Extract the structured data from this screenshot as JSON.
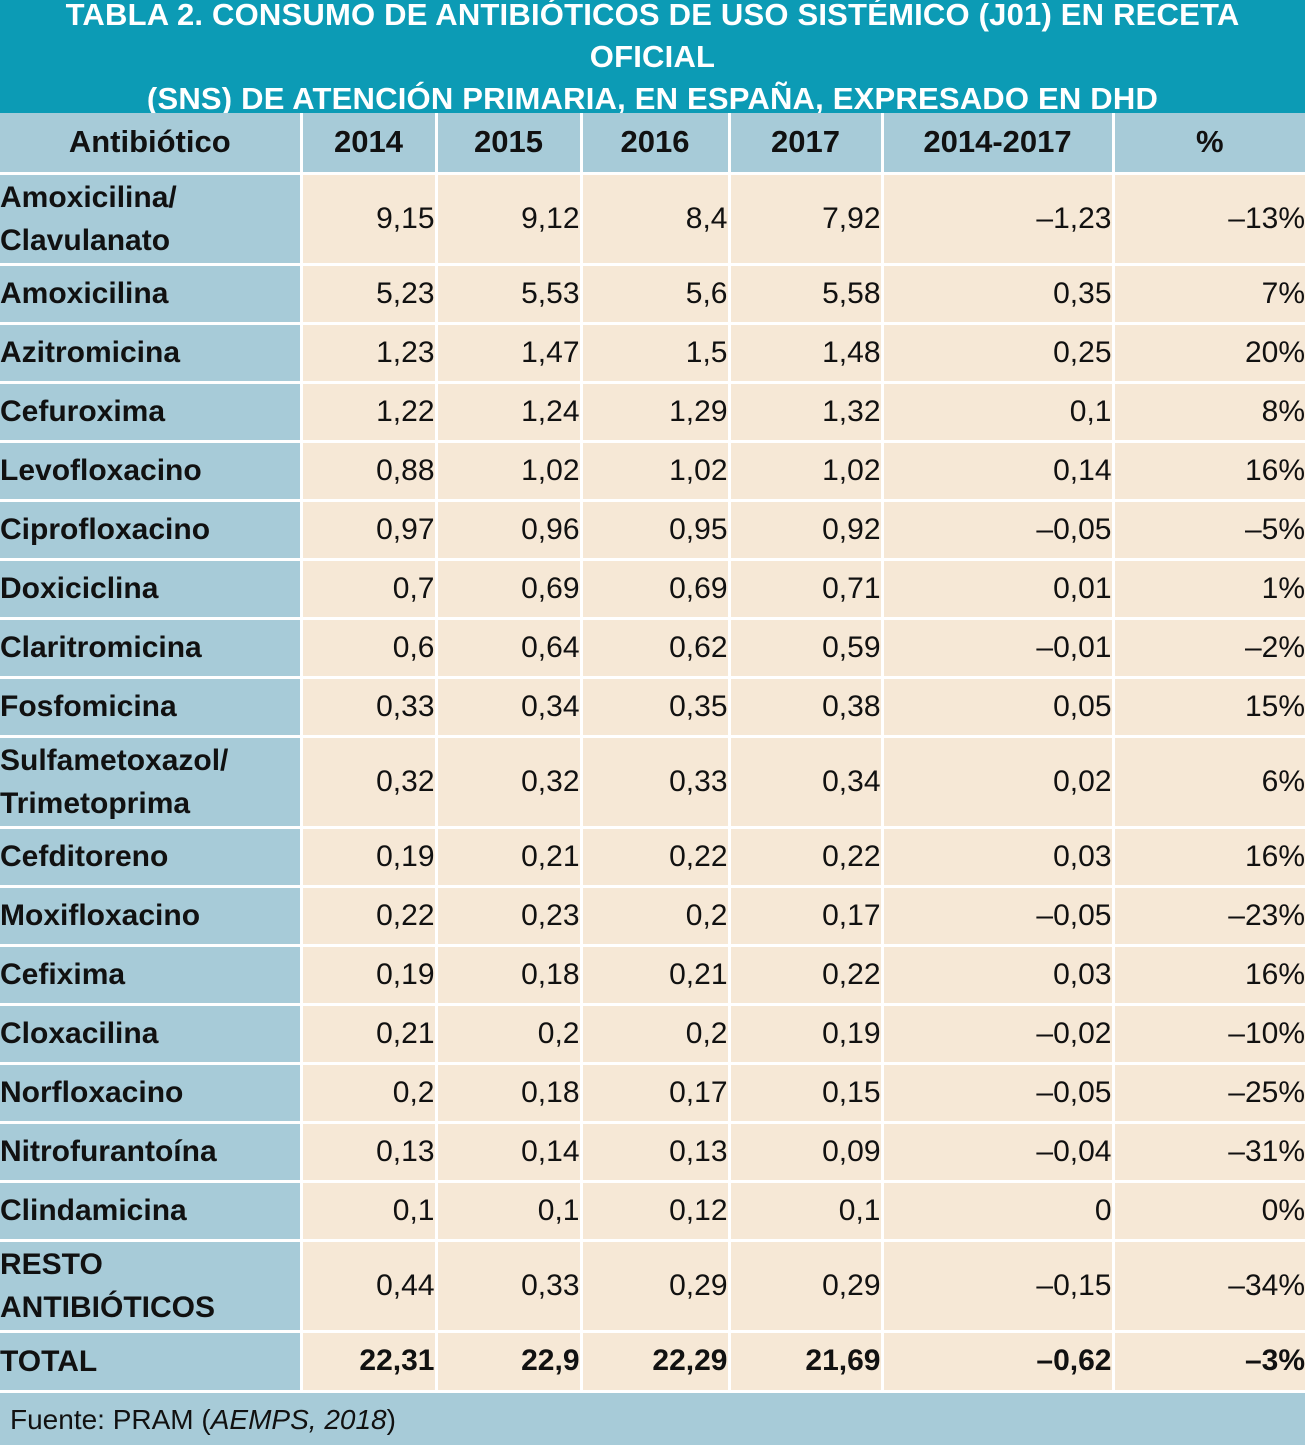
{
  "title": {
    "line1": "TABLA 2. CONSUMO DE ANTIBIÓTICOS DE USO SISTÉMICO (J01) EN RECETA OFICIAL",
    "line2": "(SNS) DE ATENCIÓN PRIMARIA, EN ESPAÑA, EXPRESADO EN DHD"
  },
  "headers": [
    "Antibiótico",
    "2014",
    "2015",
    "2016",
    "2017",
    "2014-2017",
    "%"
  ],
  "rows": [
    {
      "name": "Amoxicilina/\nClavulanato",
      "values": [
        "9,15",
        "9,12",
        "8,4",
        "7,92",
        "–1,23",
        "–13%"
      ]
    },
    {
      "name": "Amoxicilina",
      "values": [
        "5,23",
        "5,53",
        "5,6",
        "5,58",
        "0,35",
        "7%"
      ]
    },
    {
      "name": "Azitromicina",
      "values": [
        "1,23",
        "1,47",
        "1,5",
        "1,48",
        "0,25",
        "20%"
      ]
    },
    {
      "name": "Cefuroxima",
      "values": [
        "1,22",
        "1,24",
        "1,29",
        "1,32",
        "0,1",
        "8%"
      ]
    },
    {
      "name": "Levofloxacino",
      "values": [
        "0,88",
        "1,02",
        "1,02",
        "1,02",
        "0,14",
        "16%"
      ]
    },
    {
      "name": "Ciprofloxacino",
      "values": [
        "0,97",
        "0,96",
        "0,95",
        "0,92",
        "–0,05",
        "–5%"
      ]
    },
    {
      "name": "Doxiciclina",
      "values": [
        "0,7",
        "0,69",
        "0,69",
        "0,71",
        "0,01",
        "1%"
      ]
    },
    {
      "name": "Claritromicina",
      "values": [
        "0,6",
        "0,64",
        "0,62",
        "0,59",
        "–0,01",
        "–2%"
      ]
    },
    {
      "name": "Fosfomicina",
      "values": [
        "0,33",
        "0,34",
        "0,35",
        "0,38",
        "0,05",
        "15%"
      ]
    },
    {
      "name": "Sulfametoxazol/\nTrimetoprima",
      "values": [
        "0,32",
        "0,32",
        "0,33",
        "0,34",
        "0,02",
        "6%"
      ]
    },
    {
      "name": "Cefditoreno",
      "values": [
        "0,19",
        "0,21",
        "0,22",
        "0,22",
        "0,03",
        "16%"
      ]
    },
    {
      "name": "Moxifloxacino",
      "values": [
        "0,22",
        "0,23",
        "0,2",
        "0,17",
        "–0,05",
        "–23%"
      ]
    },
    {
      "name": "Cefixima",
      "values": [
        "0,19",
        "0,18",
        "0,21",
        "0,22",
        "0,03",
        "16%"
      ]
    },
    {
      "name": "Cloxacilina",
      "values": [
        "0,21",
        "0,2",
        "0,2",
        "0,19",
        "–0,02",
        "–10%"
      ]
    },
    {
      "name": "Norfloxacino",
      "values": [
        "0,2",
        "0,18",
        "0,17",
        "0,15",
        "–0,05",
        "–25%"
      ]
    },
    {
      "name": "Nitrofurantoína",
      "values": [
        "0,13",
        "0,14",
        "0,13",
        "0,09",
        "–0,04",
        "–31%"
      ]
    },
    {
      "name": "Clindamicina",
      "values": [
        "0,1",
        "0,1",
        "0,12",
        "0,1",
        "0",
        "0%"
      ]
    },
    {
      "name": "RESTO\nANTIBIÓTICOS",
      "values": [
        "0,44",
        "0,33",
        "0,29",
        "0,29",
        "–0,15",
        "–34%"
      ]
    }
  ],
  "total": {
    "name": "TOTAL",
    "values": [
      "22,31",
      "22,9",
      "22,29",
      "21,69",
      "–0,62",
      "–3%"
    ]
  },
  "footer": {
    "prefix": "Fuente: PRAM (",
    "source": "AEMPS, 2018",
    "suffix": ")"
  },
  "colors": {
    "title_bg": "#0c9bb5",
    "label_bg": "#a7cbd8",
    "cell_bg": "#f6e8d6",
    "border": "#ffffff"
  }
}
